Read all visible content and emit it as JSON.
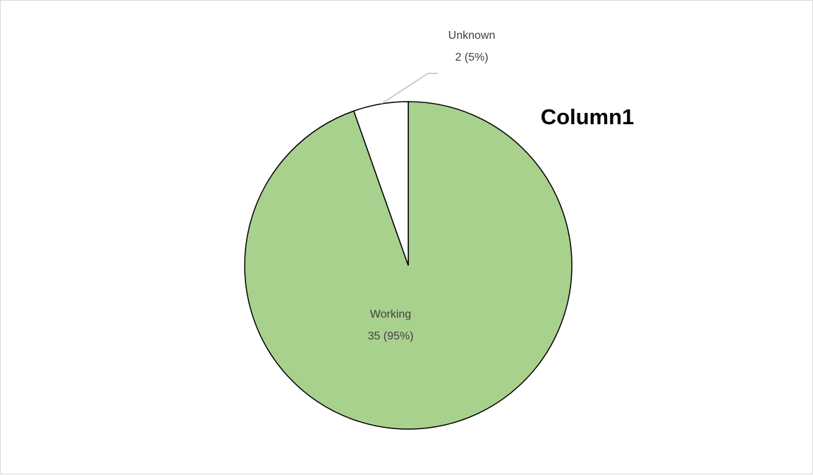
{
  "chart_data": {
    "type": "pie",
    "title": "Column1",
    "slices": [
      {
        "label": "Working",
        "value": 35,
        "percent_text": "35 (95%)",
        "color": "#a9d18e"
      },
      {
        "label": "Unknown",
        "value": 2,
        "percent_text": "2 (5%)",
        "color": "#ffffff"
      }
    ],
    "stroke_color": "#000000",
    "leader_line_color": "#a6b3c6",
    "legend": "none"
  }
}
